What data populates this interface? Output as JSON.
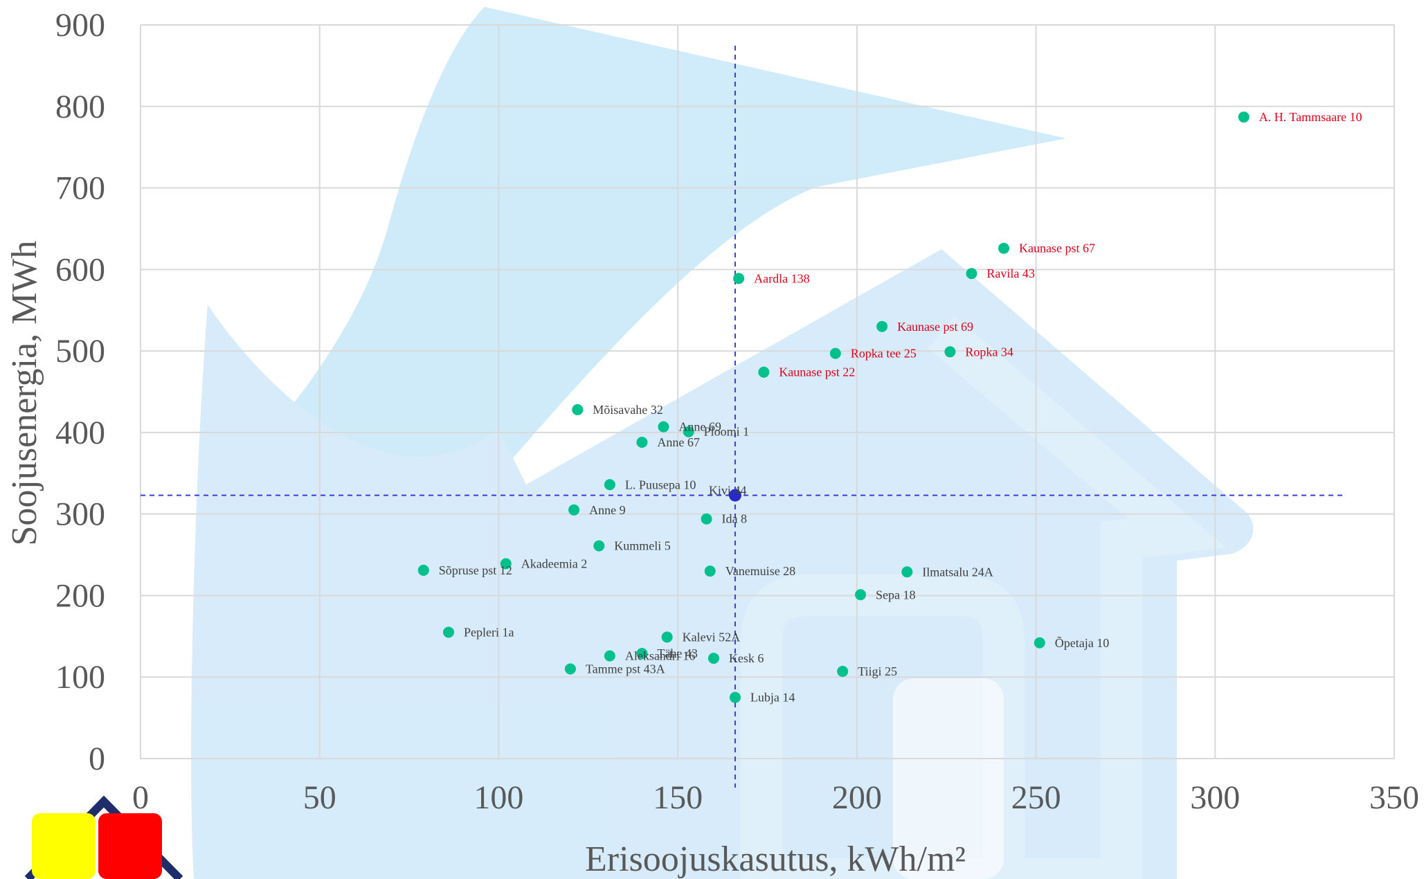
{
  "colors": {
    "point": "#00C08B",
    "reference_point": "#2929C8",
    "reference_line": "#3B3BD6",
    "label_normal": "#404040",
    "label_highlight": "#E0001B",
    "grid": "#D9D9D9",
    "watermark": "#A9DBF5",
    "logo_yellow": "#FFFF00",
    "logo_red": "#FF0000",
    "logo_outline": "#1F2E6B"
  },
  "chart_data": {
    "type": "scatter",
    "xlabel": "Erisoojuskasutus, kWh/m²",
    "ylabel": "Soojusenergia, MWh",
    "xlim": [
      0,
      350
    ],
    "ylim": [
      0,
      900
    ],
    "x_ticks": [
      "0",
      "50",
      "100",
      "150",
      "200",
      "250",
      "300",
      "350"
    ],
    "y_ticks": [
      "0",
      "100",
      "200",
      "300",
      "400",
      "500",
      "600",
      "700",
      "800",
      "900"
    ],
    "grid": true,
    "reference": {
      "x": 166,
      "y": 323,
      "label": "Kivi 44"
    },
    "points": [
      {
        "label": "A. H. Tammsaare 10",
        "x": 308,
        "y": 787,
        "highlight": true
      },
      {
        "label": "Kaunase pst 67",
        "x": 241,
        "y": 626,
        "highlight": true
      },
      {
        "label": "Ravila 43",
        "x": 232,
        "y": 595,
        "highlight": true
      },
      {
        "label": "Aardla 138",
        "x": 167,
        "y": 589,
        "highlight": true
      },
      {
        "label": "Kaunase pst 69",
        "x": 207,
        "y": 530,
        "highlight": true
      },
      {
        "label": "Ropka tee 25",
        "x": 194,
        "y": 497,
        "highlight": true
      },
      {
        "label": "Ropka 34",
        "x": 226,
        "y": 499,
        "highlight": true
      },
      {
        "label": "Kaunase pst 22",
        "x": 174,
        "y": 474,
        "highlight": true
      },
      {
        "label": "Mõisavahe 32",
        "x": 122,
        "y": 428,
        "highlight": false
      },
      {
        "label": "Anne 69",
        "x": 146,
        "y": 407,
        "highlight": false
      },
      {
        "label": "Ploomi 1",
        "x": 153,
        "y": 401,
        "highlight": false
      },
      {
        "label": "Anne 67",
        "x": 140,
        "y": 388,
        "highlight": false
      },
      {
        "label": "L. Puusepa 10",
        "x": 131,
        "y": 336,
        "highlight": false
      },
      {
        "label": "Anne 9",
        "x": 121,
        "y": 305,
        "highlight": false
      },
      {
        "label": "Ida 8",
        "x": 158,
        "y": 294,
        "highlight": false
      },
      {
        "label": "Kummeli 5",
        "x": 128,
        "y": 261,
        "highlight": false
      },
      {
        "label": "Akadeemia 2",
        "x": 102,
        "y": 239,
        "highlight": false
      },
      {
        "label": "Sõpruse pst 12",
        "x": 79,
        "y": 231,
        "highlight": false
      },
      {
        "label": "Vanemuise 28",
        "x": 159,
        "y": 230,
        "highlight": false
      },
      {
        "label": "Ilmatsalu 24A",
        "x": 214,
        "y": 229,
        "highlight": false
      },
      {
        "label": "Sepa 18",
        "x": 201,
        "y": 201,
        "highlight": false
      },
      {
        "label": "Pepleri 1a",
        "x": 86,
        "y": 155,
        "highlight": false
      },
      {
        "label": "Kalevi 52A",
        "x": 147,
        "y": 149,
        "highlight": false
      },
      {
        "label": "Õpetaja 10",
        "x": 251,
        "y": 142,
        "highlight": false
      },
      {
        "label": "Tähe 43",
        "x": 140,
        "y": 129,
        "highlight": false
      },
      {
        "label": "Aleksandri 16",
        "x": 131,
        "y": 126,
        "highlight": false
      },
      {
        "label": "Kesk 6",
        "x": 160,
        "y": 123,
        "highlight": false
      },
      {
        "label": "Tamme pst 43A",
        "x": 120,
        "y": 110,
        "highlight": false
      },
      {
        "label": "Tiigi 25",
        "x": 196,
        "y": 107,
        "highlight": false
      },
      {
        "label": "Lubja 14",
        "x": 166,
        "y": 75,
        "highlight": false
      }
    ]
  }
}
